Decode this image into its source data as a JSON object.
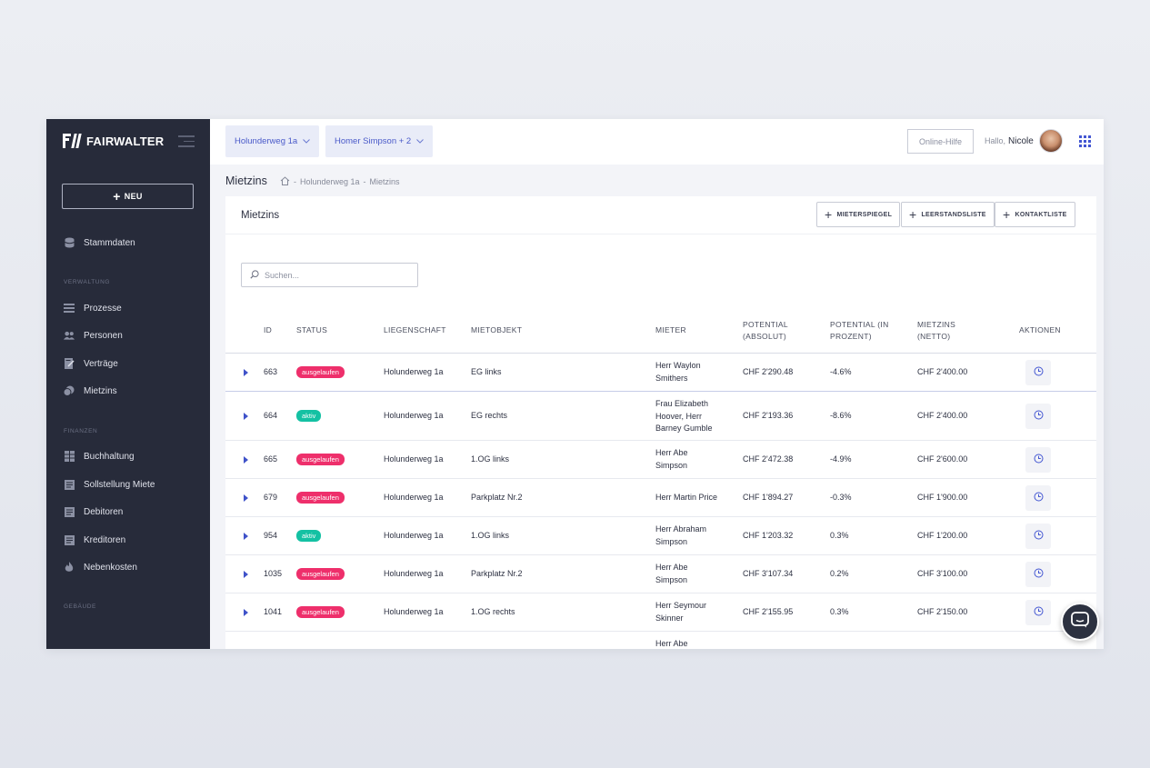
{
  "brand": {
    "name": "FAIRWALTER"
  },
  "sidebar": {
    "new_label": "NEU",
    "items": [
      {
        "label": "Stammdaten",
        "icon": "database-icon"
      },
      {
        "label": "Prozesse",
        "icon": "list-icon"
      },
      {
        "label": "Personen",
        "icon": "users-icon"
      },
      {
        "label": "Verträge",
        "icon": "contract-icon"
      },
      {
        "label": "Mietzins",
        "icon": "coins-icon"
      },
      {
        "label": "Buchhaltung",
        "icon": "ledger-icon"
      },
      {
        "label": "Sollstellung Miete",
        "icon": "receipt-icon"
      },
      {
        "label": "Debitoren",
        "icon": "receipt-icon"
      },
      {
        "label": "Kreditoren",
        "icon": "receipt-icon"
      },
      {
        "label": "Nebenkosten",
        "icon": "flame-icon"
      }
    ],
    "sections": {
      "verwaltung": "VERWALTUNG",
      "finanzen": "FINANZEN",
      "gebaeude": "GEBÄUDE"
    }
  },
  "topbar": {
    "property_filter": "Holunderweg 1a",
    "person_filter": "Homer Simpson + 2",
    "help_label": "Online-Hilfe",
    "greeting": "Hallo,",
    "user_name": "Nicole"
  },
  "breadcrumb": {
    "title": "Mietzins",
    "path": "Holunderweg 1a",
    "current": "Mietzins",
    "sep": "-"
  },
  "card": {
    "title": "Mietzins",
    "buttons": [
      "MIETERSPIEGEL",
      "LEERSTANDSLISTE",
      "KONTAKTLISTE"
    ],
    "search_placeholder": "Suchen..."
  },
  "table": {
    "columns": {
      "id": "ID",
      "status": "STATUS",
      "liegenschaft": "LIEGENSCHAFT",
      "mietobjekt": "MIETOBJEKT",
      "mieter": "MIETER",
      "pot_abs_1": "POTENTIAL",
      "pot_abs_2": "(ABSOLUT)",
      "pot_pct_1": "POTENTIAL (IN",
      "pot_pct_2": "PROZENT)",
      "netto_1": "MIETZINS",
      "netto_2": "(NETTO)",
      "aktionen": "AKTIONEN"
    },
    "rows": [
      {
        "id": "663",
        "status": "ausgelaufen",
        "liegenschaft": "Holunderweg 1a",
        "mietobjekt": "EG links",
        "mieter": [
          "Herr Waylon",
          "Smithers"
        ],
        "pot_abs": "CHF 2'290.48",
        "pot_pct": "-4.6%",
        "netto": "CHF 2'400.00"
      },
      {
        "id": "664",
        "status": "aktiv",
        "liegenschaft": "Holunderweg 1a",
        "mietobjekt": "EG rechts",
        "mieter": [
          "Frau Elizabeth",
          "Hoover, Herr",
          "Barney Gumble"
        ],
        "pot_abs": "CHF 2'193.36",
        "pot_pct": "-8.6%",
        "netto": "CHF 2'400.00"
      },
      {
        "id": "665",
        "status": "ausgelaufen",
        "liegenschaft": "Holunderweg 1a",
        "mietobjekt": "1.OG links",
        "mieter": [
          "Herr Abe",
          "Simpson"
        ],
        "pot_abs": "CHF 2'472.38",
        "pot_pct": "-4.9%",
        "netto": "CHF 2'600.00"
      },
      {
        "id": "679",
        "status": "ausgelaufen",
        "liegenschaft": "Holunderweg 1a",
        "mietobjekt": "Parkplatz Nr.2",
        "mieter": [
          "Herr Martin Price"
        ],
        "pot_abs": "CHF 1'894.27",
        "pot_pct": "-0.3%",
        "netto": "CHF 1'900.00"
      },
      {
        "id": "954",
        "status": "aktiv",
        "liegenschaft": "Holunderweg 1a",
        "mietobjekt": "1.OG links",
        "mieter": [
          "Herr Abraham",
          "Simpson"
        ],
        "pot_abs": "CHF 1'203.32",
        "pot_pct": "0.3%",
        "netto": "CHF 1'200.00"
      },
      {
        "id": "1035",
        "status": "ausgelaufen",
        "liegenschaft": "Holunderweg 1a",
        "mietobjekt": "Parkplatz Nr.2",
        "mieter": [
          "Herr Abe",
          "Simpson"
        ],
        "pot_abs": "CHF 3'107.34",
        "pot_pct": "0.2%",
        "netto": "CHF 3'100.00"
      },
      {
        "id": "1041",
        "status": "ausgelaufen",
        "liegenschaft": "Holunderweg 1a",
        "mietobjekt": "1.OG rechts",
        "mieter": [
          "Herr Seymour",
          "Skinner"
        ],
        "pot_abs": "CHF 2'155.95",
        "pot_pct": "0.3%",
        "netto": "CHF 2'150.00"
      },
      {
        "id": "",
        "status": "",
        "liegenschaft": "",
        "mietobjekt": "",
        "mieter": [
          "Herr Abe"
        ],
        "pot_abs": "",
        "pot_pct": "",
        "netto": ""
      }
    ]
  },
  "colors": {
    "accent": "#4356d2",
    "sidebar_bg": "#272b3a",
    "status_expired": "#ee2f6b",
    "status_active": "#14c1a3"
  }
}
